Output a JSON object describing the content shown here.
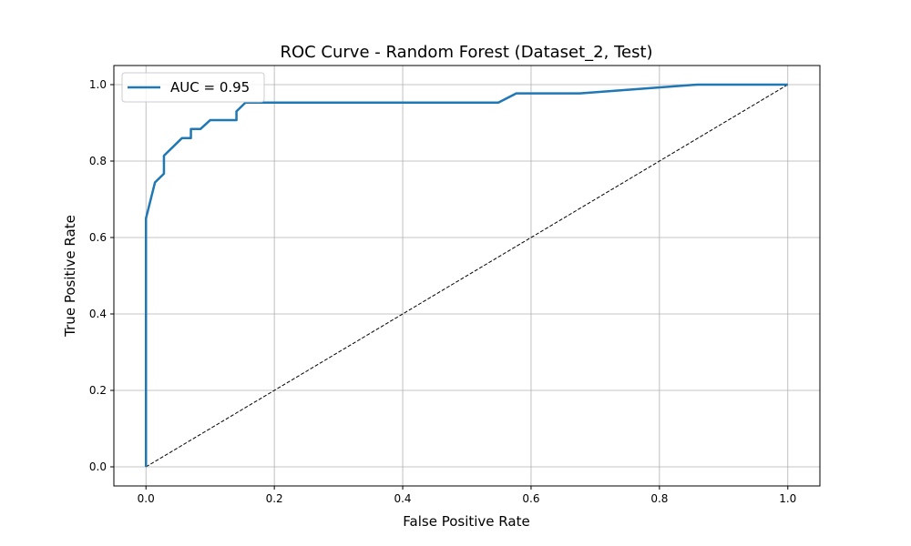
{
  "chart_data": {
    "type": "line",
    "title": "ROC Curve - Random Forest (Dataset_2, Test)",
    "xlabel": "False Positive Rate",
    "ylabel": "True Positive Rate",
    "xlim": [
      -0.05,
      1.05
    ],
    "ylim": [
      -0.05,
      1.05
    ],
    "xticks": [
      0.0,
      0.2,
      0.4,
      0.6,
      0.8,
      1.0
    ],
    "yticks": [
      0.0,
      0.2,
      0.4,
      0.6,
      0.8,
      1.0
    ],
    "xtick_labels": [
      "0.0",
      "0.2",
      "0.4",
      "0.6",
      "0.8",
      "1.0"
    ],
    "ytick_labels": [
      "0.0",
      "0.2",
      "0.4",
      "0.6",
      "0.8",
      "1.0"
    ],
    "grid": true,
    "legend_position": "top-left",
    "series": [
      {
        "name": "AUC = 0.95",
        "color": "#1f77b4",
        "style": "solid",
        "x": [
          0.0,
          0.0,
          0.0,
          0.014,
          0.028,
          0.028,
          0.056,
          0.07,
          0.07,
          0.085,
          0.1,
          0.1,
          0.141,
          0.141,
          0.155,
          0.155,
          0.549,
          0.577,
          0.676,
          0.859,
          1.0
        ],
        "y": [
          0.0,
          0.65,
          0.65,
          0.744,
          0.767,
          0.814,
          0.86,
          0.86,
          0.884,
          0.884,
          0.907,
          0.907,
          0.907,
          0.93,
          0.953,
          0.953,
          0.953,
          0.977,
          0.977,
          1.0,
          1.0
        ]
      },
      {
        "name": "",
        "color": "#000000",
        "style": "dashed",
        "x": [
          0.0,
          1.0
        ],
        "y": [
          0.0,
          1.0
        ]
      }
    ]
  }
}
